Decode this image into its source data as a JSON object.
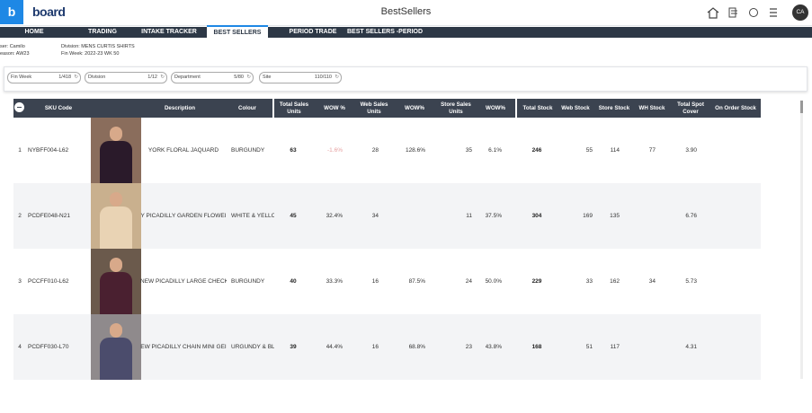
{
  "header": {
    "logo": "board",
    "title": "BestSellers",
    "avatar": "CA"
  },
  "nav": {
    "tabs": [
      "HOME",
      "TRADING",
      "INTAKE TRACKER",
      "BEST SELLERS",
      "PERIOD TRADE",
      "BEST SELLERS -PERIOD"
    ],
    "active": 3
  },
  "info": {
    "user": "ser: Camilo",
    "season": "eason: AW23",
    "division": "Division: MENS CURTIS SHIRTS",
    "fin_week": "Fin Week: 2022-23 WK 50"
  },
  "filters": [
    {
      "label": "Fin Week",
      "count": "1/418"
    },
    {
      "label": "Division",
      "count": "1/12"
    },
    {
      "label": "Department",
      "count": "5/80"
    },
    {
      "label": "Site",
      "count": "110/110"
    }
  ],
  "table": {
    "headers": [
      "SKU Code",
      "Description",
      "Colour",
      "Total Sales Units",
      "WOW %",
      "Web Sales Units",
      "WOW%",
      "Store Sales Units",
      "WOW%",
      "Total Stock",
      "Web Stock",
      "Store Stock",
      "WH Stock",
      "Total Spot Cover",
      "On Order Stock"
    ],
    "rows": [
      [
        "1",
        "NYBFF004-L62",
        "YORK FLORAL JAQUARD",
        "BURGUNDY",
        "63",
        "-1.6%",
        "28",
        "128.6%",
        "35",
        "6.1%",
        "246",
        "55",
        "114",
        "77",
        "3.90",
        null
      ],
      [
        "2",
        "PCDFE048-N21",
        "Y PICADILLY GARDEN FLOWEI",
        "WHITE & YELLOW",
        "45",
        "32.4%",
        "34",
        null,
        "11",
        "37.5%",
        "304",
        "169",
        "135",
        null,
        "6.76",
        null
      ],
      [
        "3",
        "PCCFF010-L62",
        "NEW PICADILLY LARGE CHECK",
        "BURGUNDY",
        "40",
        "33.3%",
        "16",
        "87.5%",
        "24",
        "50.0%",
        "229",
        "33",
        "162",
        "34",
        "5.73",
        null
      ],
      [
        "4",
        "PCDFF030-L70",
        "EW PICADILLY CHAIN MINI GEI",
        "URGUNDY & BLUI",
        "39",
        "44.4%",
        "16",
        "68.8%",
        "23",
        "43.8%",
        "168",
        "51",
        "117",
        null,
        "4.31",
        null
      ]
    ]
  }
}
